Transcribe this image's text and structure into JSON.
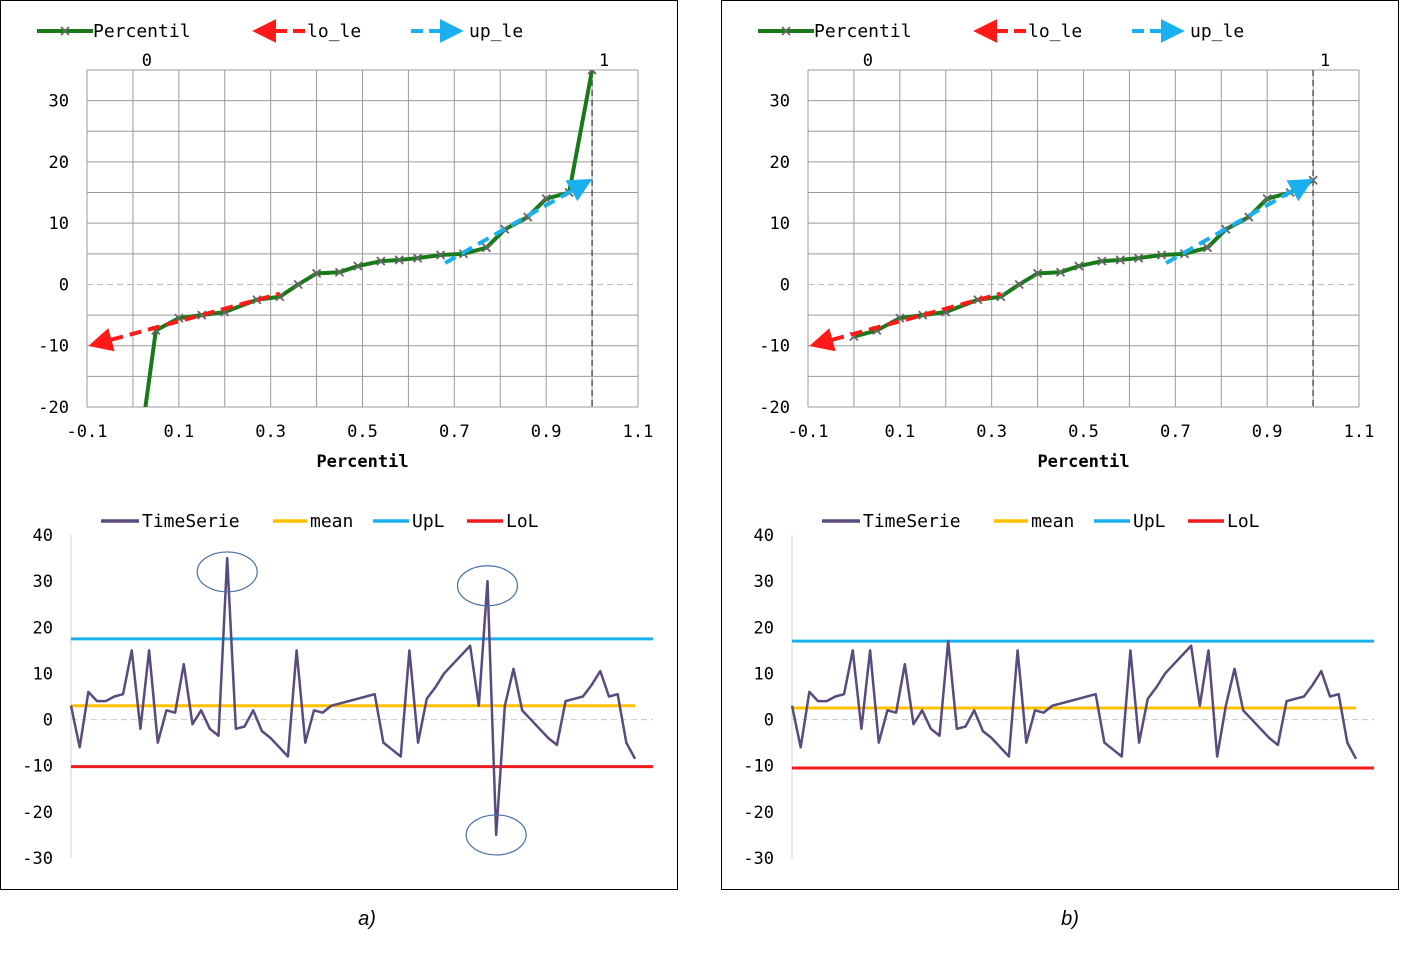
{
  "captions": [
    "a)",
    "b)"
  ],
  "chart_data": [
    {
      "panel": "a",
      "type": "line",
      "title": "",
      "xlabel": "Percentil",
      "ylabel": "",
      "xlim": [
        -0.1,
        1.1
      ],
      "ylim": [
        -20,
        35
      ],
      "x_ticks": [
        -0.1,
        0.1,
        0.3,
        0.5,
        0.7,
        0.9,
        1.1
      ],
      "x_tick_labels": [
        "-0.1",
        "0.1",
        "0.3",
        "0.5",
        "0.7",
        "0.9",
        "1.1"
      ],
      "y_ticks": [
        -20,
        -10,
        0,
        10,
        20,
        30
      ],
      "y_tick_labels": [
        "-20",
        "-10",
        "0",
        "10",
        "20",
        "30"
      ],
      "top_labels": [
        {
          "x": 0,
          "text": "0"
        },
        {
          "x": 1,
          "text": "1"
        }
      ],
      "grid": true,
      "legend_position": "top",
      "series": [
        {
          "name": "Percentil",
          "color": "#1a7a1a",
          "style": "solid",
          "marker": "x",
          "x": [
            0,
            0.05,
            0.1,
            0.15,
            0.2,
            0.27,
            0.32,
            0.36,
            0.4,
            0.45,
            0.49,
            0.54,
            0.58,
            0.62,
            0.67,
            0.72,
            0.77,
            0.81,
            0.86,
            0.9,
            0.95,
            1.0
          ],
          "y": [
            -35,
            -7.5,
            -5.5,
            -5,
            -4.5,
            -2.5,
            -2,
            0,
            1.8,
            2,
            3,
            3.8,
            4,
            4.3,
            4.8,
            5,
            6,
            9,
            11,
            14,
            15,
            35
          ]
        },
        {
          "name": "lo_le",
          "color": "#ff1a1a",
          "style": "dashed",
          "arrow": "start",
          "x": [
            -0.1,
            0.32
          ],
          "y": [
            -10,
            -1.5
          ]
        },
        {
          "name": "up_le",
          "color": "#1ab0ef",
          "style": "dashed",
          "arrow": "end",
          "x": [
            0.68,
            1.0
          ],
          "y": [
            3.5,
            17
          ]
        }
      ]
    },
    {
      "panel": "a",
      "type": "line",
      "title": "",
      "xlabel": "",
      "ylabel": "",
      "ylim": [
        -30,
        40
      ],
      "y_ticks": [
        -30,
        -20,
        -10,
        0,
        10,
        20,
        30,
        40
      ],
      "y_tick_labels": [
        "-30",
        "-20",
        "-10",
        "0",
        "10",
        "20",
        "30",
        "40"
      ],
      "grid": false,
      "legend_position": "top",
      "series": [
        {
          "name": "TimeSerie",
          "color": "#5a4a7e",
          "values": [
            3,
            -6,
            6,
            4,
            4,
            5,
            5.5,
            15,
            -2,
            15,
            -5,
            2,
            1.5,
            12,
            -1,
            2,
            -2,
            -3.5,
            35,
            -2,
            -1.5,
            2,
            -2.5,
            -4,
            -6,
            -8,
            15,
            -5,
            2,
            1.5,
            3,
            3.5,
            4,
            4.5,
            5,
            5.5,
            -5,
            -6.5,
            -8,
            15,
            -5,
            4.5,
            7,
            10,
            12,
            14,
            16,
            3,
            30,
            -25,
            3,
            11,
            2,
            0,
            -2,
            -4,
            -5.5,
            4,
            4.5,
            5,
            7.5,
            10.5,
            5,
            5.5,
            -5,
            -8.5
          ]
        },
        {
          "name": "mean",
          "color": "#ffc000",
          "values": [
            3,
            3
          ]
        },
        {
          "name": "UpL",
          "color": "#1ab0ef",
          "values": [
            17.5,
            17.5
          ]
        },
        {
          "name": "LoL",
          "color": "#ee1c1c",
          "values": [
            -10.2,
            -10.2
          ]
        }
      ],
      "annotations": [
        {
          "type": "ellipse",
          "index": 18,
          "y": 32
        },
        {
          "type": "ellipse",
          "index": 48,
          "y": 29
        },
        {
          "type": "ellipse",
          "index": 49,
          "y": -25
        }
      ]
    },
    {
      "panel": "b",
      "type": "line",
      "title": "",
      "xlabel": "Percentil",
      "ylabel": "",
      "xlim": [
        -0.1,
        1.1
      ],
      "ylim": [
        -20,
        35
      ],
      "x_ticks": [
        -0.1,
        0.1,
        0.3,
        0.5,
        0.7,
        0.9,
        1.1
      ],
      "x_tick_labels": [
        "-0.1",
        "0.1",
        "0.3",
        "0.5",
        "0.7",
        "0.9",
        "1.1"
      ],
      "y_ticks": [
        -20,
        -10,
        0,
        10,
        20,
        30
      ],
      "y_tick_labels": [
        "-20",
        "-10",
        "0",
        "10",
        "20",
        "30"
      ],
      "top_labels": [
        {
          "x": 0,
          "text": "0"
        },
        {
          "x": 1,
          "text": "1"
        }
      ],
      "grid": true,
      "legend_position": "top",
      "series": [
        {
          "name": "Percentil",
          "color": "#1a7a1a",
          "style": "solid",
          "marker": "x",
          "x": [
            0,
            0.05,
            0.1,
            0.15,
            0.2,
            0.27,
            0.32,
            0.36,
            0.4,
            0.45,
            0.49,
            0.54,
            0.58,
            0.62,
            0.67,
            0.72,
            0.77,
            0.81,
            0.86,
            0.9,
            0.95,
            1.0
          ],
          "y": [
            -8.5,
            -7.5,
            -5.5,
            -5,
            -4.5,
            -2.5,
            -2,
            0,
            1.8,
            2,
            3,
            3.8,
            4,
            4.3,
            4.8,
            5,
            6,
            9,
            11,
            14,
            15,
            17
          ]
        },
        {
          "name": "lo_le",
          "color": "#ff1a1a",
          "style": "dashed",
          "arrow": "start",
          "x": [
            -0.1,
            0.32
          ],
          "y": [
            -10,
            -1.5
          ]
        },
        {
          "name": "up_le",
          "color": "#1ab0ef",
          "style": "dashed",
          "arrow": "end",
          "x": [
            0.68,
            1.0
          ],
          "y": [
            3.5,
            17
          ]
        }
      ]
    },
    {
      "panel": "b",
      "type": "line",
      "title": "",
      "xlabel": "",
      "ylabel": "",
      "ylim": [
        -30,
        40
      ],
      "y_ticks": [
        -30,
        -20,
        -10,
        0,
        10,
        20,
        30,
        40
      ],
      "y_tick_labels": [
        "-30",
        "-20",
        "-10",
        "0",
        "10",
        "20",
        "30",
        "40"
      ],
      "grid": false,
      "legend_position": "top",
      "series": [
        {
          "name": "TimeSerie",
          "color": "#5a4a7e",
          "values": [
            3,
            -6,
            6,
            4,
            4,
            5,
            5.5,
            15,
            -2,
            15,
            -5,
            2,
            1.5,
            12,
            -1,
            2,
            -2,
            -3.5,
            17,
            -2,
            -1.5,
            2,
            -2.5,
            -4,
            -6,
            -8,
            15,
            -5,
            2,
            1.5,
            3,
            3.5,
            4,
            4.5,
            5,
            5.5,
            -5,
            -6.5,
            -8,
            15,
            -5,
            4.5,
            7,
            10,
            12,
            14,
            16,
            3,
            15,
            -8,
            3,
            11,
            2,
            0,
            -2,
            -4,
            -5.5,
            4,
            4.5,
            5,
            7.5,
            10.5,
            5,
            5.5,
            -5,
            -8.5
          ]
        },
        {
          "name": "mean",
          "color": "#ffc000",
          "values": [
            2.5,
            2.5
          ]
        },
        {
          "name": "UpL",
          "color": "#1ab0ef",
          "values": [
            17,
            17
          ]
        },
        {
          "name": "LoL",
          "color": "#ee1c1c",
          "values": [
            -10.5,
            -10.5
          ]
        }
      ]
    }
  ]
}
